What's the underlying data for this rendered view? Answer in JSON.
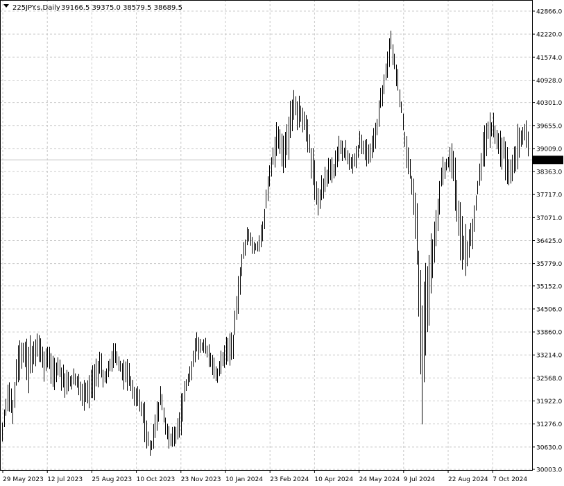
{
  "header": {
    "symbol_timeframe": "225JPY.s,Daily",
    "ohlc_text": "39166.5 39375.0 38579.5 38689.5"
  },
  "colors": {
    "background": "#ffffff",
    "bars": "#000000",
    "grid": "#c8c8c8",
    "price_line": "#c0c0c0",
    "price_label_bg": "#000000",
    "price_label_text": "#ffffff"
  },
  "chart_data": {
    "type": "bar",
    "style": "ohlc",
    "symbol": "225JPY.s",
    "timeframe": "Daily",
    "last_price": "38689.5",
    "y_ticks": [
      "42866.0",
      "42220.0",
      "41574.0",
      "40928.0",
      "40301.0",
      "39655.0",
      "39009.0",
      "38363.0",
      "37717.0",
      "37071.0",
      "36425.0",
      "35779.0",
      "35152.0",
      "34506.0",
      "33860.0",
      "33214.0",
      "32568.0",
      "31922.0",
      "31276.0",
      "30630.0",
      "30003.0"
    ],
    "x_ticks": [
      "29 May 2023",
      "12 Jul 2023",
      "25 Aug 2023",
      "10 Oct 2023",
      "23 Nov 2023",
      "10 Jan 2024",
      "23 Feb 2024",
      "10 Apr 2024",
      "24 May 2024",
      "9 Jul 2024",
      "22 Aug 2024",
      "7 Oct 2024"
    ],
    "ylim": [
      30003,
      42866
    ],
    "grid": true,
    "price_bands": [
      [
        0,
        30700,
        31500
      ],
      [
        1,
        31500,
        32700
      ],
      [
        2,
        31200,
        32200
      ],
      [
        3,
        32200,
        33700
      ],
      [
        4,
        32800,
        33700
      ],
      [
        5,
        32000,
        33900
      ],
      [
        6,
        32800,
        33700
      ],
      [
        7,
        33000,
        33900
      ],
      [
        8,
        32400,
        33600
      ],
      [
        9,
        32800,
        33500
      ],
      [
        10,
        32000,
        33500
      ],
      [
        11,
        32500,
        33300
      ],
      [
        12,
        31900,
        33100
      ],
      [
        13,
        32000,
        32800
      ],
      [
        14,
        32300,
        32900
      ],
      [
        15,
        31900,
        32700
      ],
      [
        16,
        31500,
        32600
      ],
      [
        17,
        31500,
        32800
      ],
      [
        18,
        31900,
        33000
      ],
      [
        19,
        32300,
        33500
      ],
      [
        20,
        32200,
        32900
      ],
      [
        21,
        32600,
        33200
      ],
      [
        22,
        32900,
        33700
      ],
      [
        23,
        32600,
        33100
      ],
      [
        24,
        32100,
        33200
      ],
      [
        25,
        32000,
        33000
      ],
      [
        26,
        31600,
        32500
      ],
      [
        27,
        31400,
        32200
      ],
      [
        28,
        30500,
        31900
      ],
      [
        29,
        30300,
        30800
      ],
      [
        30,
        30800,
        31800
      ],
      [
        31,
        31700,
        32500
      ],
      [
        32,
        30800,
        31500
      ],
      [
        33,
        30400,
        31200
      ],
      [
        34,
        30600,
        31400
      ],
      [
        35,
        30900,
        32200
      ],
      [
        36,
        32000,
        32700
      ],
      [
        37,
        32400,
        33300
      ],
      [
        38,
        33000,
        33900
      ],
      [
        39,
        33200,
        33700
      ],
      [
        40,
        33000,
        33700
      ],
      [
        41,
        32600,
        33300
      ],
      [
        42,
        32400,
        33000
      ],
      [
        43,
        32700,
        33500
      ],
      [
        44,
        32900,
        33800
      ],
      [
        45,
        32900,
        33900
      ],
      [
        46,
        34000,
        35300
      ],
      [
        47,
        35500,
        36500
      ],
      [
        48,
        36300,
        36900
      ],
      [
        49,
        35900,
        36600
      ],
      [
        50,
        36000,
        36500
      ],
      [
        51,
        36400,
        37300
      ],
      [
        52,
        37500,
        38400
      ],
      [
        53,
        38300,
        39500
      ],
      [
        54,
        38800,
        40100
      ],
      [
        55,
        38300,
        39400
      ],
      [
        56,
        38700,
        40200
      ],
      [
        57,
        39700,
        40700
      ],
      [
        58,
        39400,
        40700
      ],
      [
        59,
        39400,
        40200
      ],
      [
        60,
        38600,
        39800
      ],
      [
        61,
        37300,
        38800
      ],
      [
        62,
        36900,
        38100
      ],
      [
        63,
        37700,
        38500
      ],
      [
        64,
        38000,
        38900
      ],
      [
        65,
        37900,
        38900
      ],
      [
        66,
        38600,
        39600
      ],
      [
        67,
        38400,
        39300
      ],
      [
        68,
        38300,
        39000
      ],
      [
        69,
        38200,
        39100
      ],
      [
        70,
        38800,
        39600
      ],
      [
        71,
        38400,
        39300
      ],
      [
        72,
        38500,
        39300
      ],
      [
        73,
        38800,
        39800
      ],
      [
        74,
        39900,
        40900
      ],
      [
        75,
        40600,
        41600
      ],
      [
        76,
        41600,
        42400
      ],
      [
        77,
        40600,
        41600
      ],
      [
        78,
        39800,
        40600
      ],
      [
        79,
        38300,
        39400
      ],
      [
        80,
        37800,
        38500
      ],
      [
        81,
        36000,
        38100
      ],
      [
        82,
        30500,
        35300
      ],
      [
        83,
        33000,
        36200
      ],
      [
        84,
        35200,
        36800
      ],
      [
        85,
        36400,
        37900
      ],
      [
        86,
        37900,
        38800
      ],
      [
        87,
        38300,
        38900
      ],
      [
        88,
        38100,
        39200
      ],
      [
        89,
        36500,
        38400
      ],
      [
        90,
        35300,
        37100
      ],
      [
        91,
        35500,
        36800
      ],
      [
        92,
        36100,
        37300
      ],
      [
        93,
        37500,
        38300
      ],
      [
        94,
        38200,
        39600
      ],
      [
        95,
        38900,
        40100
      ],
      [
        96,
        39100,
        40100
      ],
      [
        97,
        38500,
        39600
      ],
      [
        98,
        38300,
        39700
      ],
      [
        99,
        37800,
        38900
      ],
      [
        100,
        38100,
        39100
      ],
      [
        101,
        38500,
        39900
      ],
      [
        102,
        39000,
        40000
      ],
      [
        103,
        38700,
        39600
      ]
    ]
  }
}
